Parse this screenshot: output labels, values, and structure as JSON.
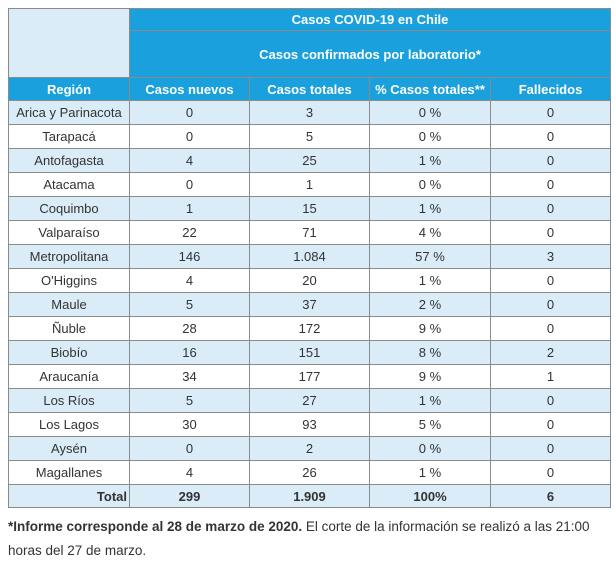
{
  "header": {
    "title": "Casos COVID-19 en Chile",
    "subtitle": "Casos confirmados por laboratorio*",
    "columns": [
      "Región",
      "Casos nuevos",
      "Casos totales",
      "% Casos totales**",
      "Fallecidos"
    ]
  },
  "rows": [
    {
      "region": "Arica y Parinacota",
      "nuevos": "0",
      "totales": "3",
      "pct": "0 %",
      "fallecidos": "0"
    },
    {
      "region": "Tarapacá",
      "nuevos": "0",
      "totales": "5",
      "pct": "0 %",
      "fallecidos": "0"
    },
    {
      "region": "Antofagasta",
      "nuevos": "4",
      "totales": "25",
      "pct": "1 %",
      "fallecidos": "0"
    },
    {
      "region": "Atacama",
      "nuevos": "0",
      "totales": "1",
      "pct": "0 %",
      "fallecidos": "0"
    },
    {
      "region": "Coquimbo",
      "nuevos": "1",
      "totales": "15",
      "pct": "1 %",
      "fallecidos": "0"
    },
    {
      "region": "Valparaíso",
      "nuevos": "22",
      "totales": "71",
      "pct": "4 %",
      "fallecidos": "0"
    },
    {
      "region": "Metropolitana",
      "nuevos": "146",
      "totales": "1.084",
      "pct": "57 %",
      "fallecidos": "3"
    },
    {
      "region": "O'Higgins",
      "nuevos": "4",
      "totales": "20",
      "pct": "1 %",
      "fallecidos": "0"
    },
    {
      "region": "Maule",
      "nuevos": "5",
      "totales": "37",
      "pct": "2 %",
      "fallecidos": "0"
    },
    {
      "region": "Ñuble",
      "nuevos": "28",
      "totales": "172",
      "pct": "9 %",
      "fallecidos": "0"
    },
    {
      "region": "Biobío",
      "nuevos": "16",
      "totales": "151",
      "pct": "8 %",
      "fallecidos": "2"
    },
    {
      "region": "Araucanía",
      "nuevos": "34",
      "totales": "177",
      "pct": "9 %",
      "fallecidos": "1"
    },
    {
      "region": "Los Ríos",
      "nuevos": "5",
      "totales": "27",
      "pct": "1 %",
      "fallecidos": "0"
    },
    {
      "region": "Los Lagos",
      "nuevos": "30",
      "totales": "93",
      "pct": "5 %",
      "fallecidos": "0"
    },
    {
      "region": "Aysén",
      "nuevos": "0",
      "totales": "2",
      "pct": "0 %",
      "fallecidos": "0"
    },
    {
      "region": "Magallanes",
      "nuevos": "4",
      "totales": "26",
      "pct": "1 %",
      "fallecidos": "0"
    }
  ],
  "total": {
    "label": "Total",
    "nuevos": "299",
    "totales": "1.909",
    "pct": "100%",
    "fallecidos": "6"
  },
  "note": {
    "bold": "*Informe corresponde al 28 de marzo de 2020.",
    "rest": " El corte de la información se realizó a las 21:00 horas del 27 de marzo."
  },
  "colors": {
    "header": "#1aa0dc",
    "alt_row": "#d9ecf7",
    "border": "#8a8a8a"
  }
}
